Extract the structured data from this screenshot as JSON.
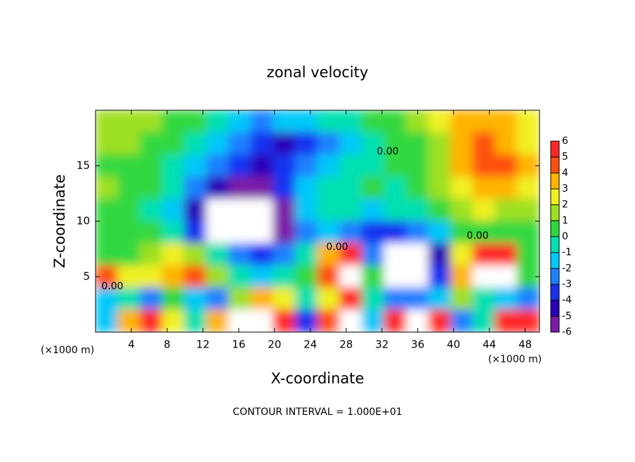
{
  "chart_data": {
    "type": "heatmap",
    "title": "zonal velocity",
    "x_label": "X-coordinate",
    "y_label": "Z-coordinate",
    "x_unit": "(×1000 m)",
    "footer": "CONTOUR INTERVAL = 1.000E+01",
    "contour_levels": [
      {
        "value": 0,
        "label": "0.00"
      }
    ],
    "xlim": [
      0,
      49.6
    ],
    "ylim": [
      0,
      20
    ],
    "xticks": [
      4,
      8,
      12,
      16,
      20,
      24,
      28,
      32,
      36,
      40,
      44,
      48
    ],
    "yticks": [
      5,
      10,
      15
    ],
    "x": [
      1.24,
      3.72,
      6.2,
      8.68,
      11.16,
      13.64,
      16.12,
      18.6,
      21.08,
      23.56,
      26.04,
      28.52,
      31,
      33.48,
      35.96,
      38.44,
      40.92,
      43.4,
      45.88,
      48.36
    ],
    "z": [
      19,
      17,
      15,
      13,
      11,
      9,
      7,
      5,
      3,
      1
    ],
    "values": [
      [
        1,
        1,
        1,
        0.5,
        0,
        -1,
        -2,
        -2.5,
        -2,
        -1.5,
        -1,
        -0.5,
        0,
        0.5,
        1,
        2,
        3,
        3.5,
        3,
        2.5
      ],
      [
        1,
        1,
        0.5,
        0,
        -0.5,
        -1.5,
        -3,
        -4,
        -4.5,
        -3.5,
        -2.5,
        -1.5,
        -1,
        0,
        0.5,
        1.5,
        3,
        4,
        3.5,
        2.5
      ],
      [
        0.5,
        0.5,
        0,
        -0.5,
        -1.5,
        -3,
        -4,
        -4.5,
        -4,
        -2.5,
        -1.5,
        -1,
        -0.5,
        0,
        0,
        1,
        3,
        4,
        4,
        3
      ],
      [
        1,
        0.5,
        0,
        -1,
        -3,
        -5,
        -5.5,
        -6,
        -4,
        -2,
        -1,
        -0.5,
        0,
        -0.5,
        0,
        1,
        2.5,
        3.5,
        3,
        2
      ],
      [
        0.5,
        0,
        -0.5,
        -2,
        -5,
        -8,
        -8,
        -8,
        -6,
        -2,
        -1,
        -1,
        -1.5,
        -1,
        -0.5,
        0.5,
        1.5,
        2,
        1.5,
        1
      ],
      [
        0.5,
        0,
        0,
        -1,
        -4,
        -8,
        -8,
        -8,
        -6,
        -3,
        -2,
        -3,
        -4,
        -4,
        -3,
        -2,
        0,
        0.5,
        0.5,
        0.5
      ],
      [
        0,
        0.5,
        1,
        2,
        1,
        -1,
        -3,
        -4,
        -3,
        -1,
        3,
        5,
        -3,
        -8,
        -8,
        -5,
        2,
        5,
        5,
        0
      ],
      [
        4,
        2,
        2,
        3,
        4,
        1,
        -1,
        -2,
        -1,
        0,
        4,
        8,
        0,
        -8,
        -8,
        -4,
        3,
        8,
        8,
        0
      ],
      [
        -2,
        -1,
        -3,
        0,
        -2,
        -3,
        1,
        3,
        2,
        -1,
        2,
        6,
        -1,
        -3,
        -3,
        -2,
        1,
        -1,
        -2,
        -3
      ],
      [
        -2,
        3,
        6,
        2,
        -1,
        3,
        8,
        8,
        5,
        -4,
        4,
        7,
        -2,
        6,
        8,
        5,
        -3,
        -1,
        5,
        6
      ]
    ],
    "levels": [
      -6,
      -5,
      -4,
      -3,
      -2,
      -1,
      0,
      1,
      2,
      3,
      4,
      5,
      6
    ],
    "colors": [
      "#7a1aa8",
      "#2a00b8",
      "#1830f0",
      "#1e80ff",
      "#00c8f8",
      "#00e0b0",
      "#30d840",
      "#9ee020",
      "#f0f020",
      "#ffb400",
      "#ff5010",
      "#ff2828"
    ],
    "out_of_range_color": "#ffffff"
  }
}
